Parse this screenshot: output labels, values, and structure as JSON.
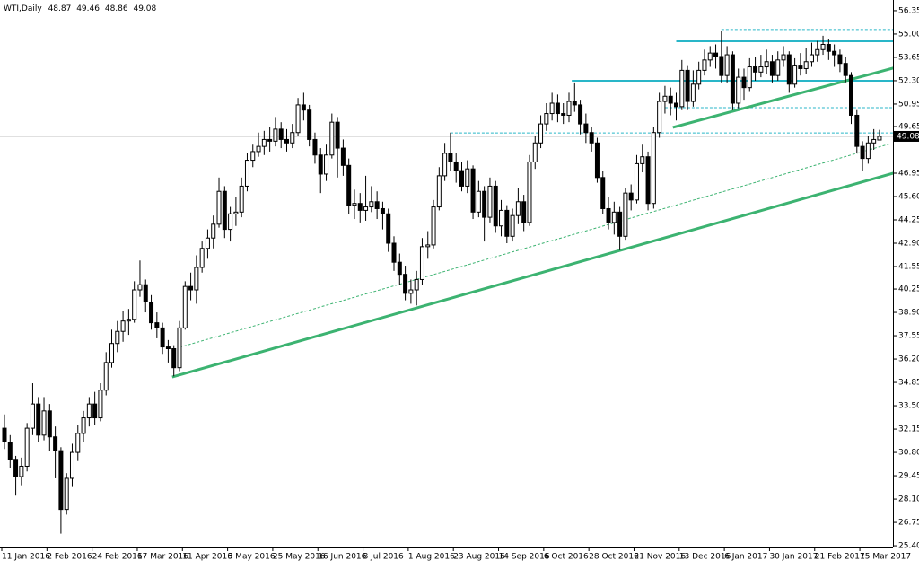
{
  "chart_data": {
    "type": "candlestick",
    "symbol": "WTI,Daily",
    "categories": [
      "11 Jan 2016",
      null,
      null,
      null,
      null,
      null,
      null,
      null,
      "2 Feb 2016",
      null,
      null,
      null,
      null,
      null,
      null,
      null,
      "24 Feb 2016",
      null,
      null,
      null,
      null,
      null,
      null,
      null,
      "17 Mar 2016",
      null,
      null,
      null,
      null,
      null,
      null,
      null,
      "11 Apr 2016",
      null,
      null,
      null,
      null,
      null,
      null,
      null,
      "3 May 2016",
      null,
      null,
      null,
      null,
      null,
      null,
      null,
      "25 May 2016",
      null,
      null,
      null,
      null,
      null,
      null,
      null,
      "16 Jun 2016",
      null,
      null,
      null,
      null,
      null,
      null,
      null,
      "8 Jul 2016",
      null,
      null,
      null,
      null,
      null,
      null,
      null,
      "1 Aug 2016",
      null,
      null,
      null,
      null,
      null,
      null,
      null,
      "23 Aug 2016",
      null,
      null,
      null,
      null,
      null,
      null,
      null,
      "14 Sep 2016",
      null,
      null,
      null,
      null,
      null,
      null,
      null,
      "6 Oct 2016",
      null,
      null,
      null,
      null,
      null,
      null,
      null,
      "28 Oct 2016",
      null,
      null,
      null,
      null,
      null,
      null,
      null,
      "21 Nov 2016",
      null,
      null,
      null,
      null,
      null,
      null,
      null,
      "13 Dec 2016",
      null,
      null,
      null,
      null,
      null,
      null,
      null,
      "6 Jan 2017",
      null,
      null,
      null,
      null,
      null,
      null,
      null,
      "30 Jan 2017",
      null,
      null,
      null,
      null,
      null,
      null,
      null,
      "21 Feb 2017",
      null,
      null,
      null,
      null,
      null,
      null,
      null,
      "15 Mar 2017",
      null,
      null,
      null
    ],
    "open": [
      32.2,
      31.4,
      30.4,
      29.4,
      30.0,
      32.2,
      33.6,
      31.8,
      33.2,
      31.7,
      30.9,
      27.5,
      29.3,
      30.8,
      31.9,
      32.8,
      33.6,
      32.8,
      34.4,
      36.0,
      37.1,
      37.8,
      38.4,
      38.5,
      40.2,
      40.5,
      39.5,
      38.3,
      38.0,
      36.9,
      36.8,
      35.7,
      38.0,
      40.4,
      40.2,
      41.5,
      42.6,
      43.2,
      44.0,
      45.9,
      43.7,
      44.6,
      44.7,
      46.2,
      47.7,
      48.2,
      48.5,
      48.9,
      48.8,
      49.5,
      48.9,
      48.7,
      49.3,
      50.9,
      50.6,
      48.9,
      48.0,
      46.9,
      48.0,
      49.9,
      48.4,
      47.4,
      45.1,
      45.2,
      44.8,
      45.0,
      45.3,
      44.9,
      44.6,
      42.9,
      41.8,
      41.1,
      40.0,
      40.2,
      40.8,
      42.7,
      42.8,
      45.0,
      46.8,
      48.1,
      47.6,
      47.1,
      46.2,
      47.2,
      44.7,
      45.9,
      44.4,
      46.2,
      43.9,
      44.8,
      43.3,
      44.5,
      45.3,
      44.1,
      47.6,
      48.7,
      49.8,
      50.4,
      51.0,
      50.4,
      50.3,
      51.1,
      50.9,
      49.8,
      49.3,
      48.7,
      46.7,
      44.9,
      44.1,
      44.7,
      43.3,
      45.8,
      45.4,
      47.5,
      47.9,
      45.2,
      49.3,
      51.1,
      51.4,
      51.0,
      50.8,
      52.9,
      51.1,
      52.1,
      52.9,
      53.5,
      53.9,
      53.7,
      52.6,
      53.8,
      51.0,
      52.5,
      51.9,
      53.1,
      52.8,
      53.1,
      53.4,
      52.6,
      53.5,
      53.8,
      52.1,
      53.2,
      53.0,
      53.4,
      53.8,
      54.1,
      54.4,
      54.0,
      53.8,
      53.3,
      52.6,
      50.3,
      48.5,
      47.8,
      48.7,
      48.87
    ],
    "high": [
      33.0,
      31.8,
      30.6,
      30.5,
      32.5,
      34.8,
      34.0,
      34.0,
      33.6,
      32.3,
      31.1,
      29.6,
      31.3,
      32.4,
      33.2,
      34.0,
      34.3,
      34.8,
      36.6,
      37.9,
      38.4,
      39.0,
      39.1,
      40.7,
      41.9,
      40.8,
      39.9,
      38.9,
      38.3,
      37.3,
      37.0,
      38.4,
      40.7,
      41.2,
      42.2,
      43.0,
      43.7,
      44.5,
      46.7,
      46.2,
      45.0,
      45.6,
      46.7,
      48.1,
      48.6,
      49.3,
      49.4,
      49.6,
      50.2,
      49.9,
      49.5,
      49.8,
      51.3,
      51.6,
      50.9,
      49.3,
      48.4,
      48.6,
      50.4,
      50.2,
      48.9,
      47.8,
      46.0,
      45.8,
      46.8,
      46.2,
      45.9,
      45.3,
      44.9,
      43.3,
      42.3,
      41.6,
      40.8,
      41.3,
      43.2,
      43.6,
      45.4,
      47.3,
      48.7,
      49.3,
      48.1,
      47.6,
      47.7,
      47.4,
      46.5,
      46.2,
      46.7,
      46.5,
      45.4,
      45.1,
      44.9,
      46.1,
      45.7,
      48.0,
      49.1,
      50.3,
      51.0,
      51.6,
      51.5,
      51.0,
      51.6,
      52.2,
      51.2,
      50.4,
      49.6,
      49.0,
      47.1,
      45.6,
      45.3,
      45.0,
      46.1,
      46.3,
      48.0,
      48.6,
      48.2,
      49.6,
      51.6,
      52.0,
      51.9,
      51.6,
      53.5,
      53.2,
      52.9,
      53.4,
      54.1,
      54.3,
      54.4,
      55.2,
      54.3,
      54.0,
      53.0,
      53.0,
      53.6,
      53.7,
      53.8,
      54.1,
      53.8,
      54.0,
      54.3,
      54.0,
      53.6,
      53.9,
      54.2,
      54.5,
      54.6,
      54.9,
      54.7,
      54.4,
      54.1,
      53.7,
      52.8,
      50.6,
      48.8,
      49.1,
      49.5,
      49.46
    ],
    "low": [
      31.0,
      29.9,
      28.3,
      28.9,
      29.7,
      31.8,
      31.4,
      31.5,
      30.9,
      29.3,
      26.1,
      27.2,
      28.8,
      30.3,
      31.4,
      32.3,
      32.4,
      32.6,
      34.1,
      35.7,
      36.6,
      37.2,
      37.6,
      38.3,
      39.8,
      38.9,
      37.9,
      37.4,
      36.5,
      36.0,
      35.2,
      35.5,
      37.9,
      39.6,
      39.4,
      41.2,
      42.0,
      42.6,
      43.8,
      43.2,
      43.0,
      43.9,
      44.4,
      45.9,
      47.3,
      47.9,
      48.0,
      48.2,
      48.5,
      48.4,
      48.2,
      48.4,
      49.1,
      50.0,
      48.5,
      47.5,
      45.8,
      46.5,
      47.8,
      46.7,
      46.8,
      44.6,
      44.3,
      44.1,
      44.2,
      44.7,
      44.3,
      43.7,
      42.4,
      41.3,
      40.5,
      39.6,
      39.4,
      39.3,
      40.5,
      42.0,
      42.6,
      44.8,
      46.5,
      47.1,
      46.4,
      45.9,
      45.8,
      44.3,
      44.4,
      43.0,
      44.1,
      43.5,
      43.3,
      42.9,
      43.0,
      44.0,
      43.6,
      43.9,
      47.2,
      48.4,
      49.4,
      50.0,
      49.9,
      49.8,
      49.9,
      50.5,
      49.2,
      48.7,
      48.2,
      46.4,
      44.6,
      43.7,
      43.4,
      42.5,
      43.1,
      44.8,
      45.2,
      47.0,
      44.8,
      44.9,
      49.0,
      50.4,
      50.3,
      50.0,
      50.6,
      50.6,
      50.8,
      51.8,
      52.6,
      53.1,
      53.0,
      52.2,
      52.2,
      50.6,
      50.7,
      51.2,
      51.7,
      52.3,
      52.5,
      52.7,
      52.2,
      52.3,
      53.1,
      51.6,
      51.9,
      52.6,
      52.7,
      53.1,
      53.4,
      53.8,
      53.5,
      53.1,
      52.8,
      52.2,
      49.8,
      48.1,
      47.1,
      47.5,
      48.3,
      48.86
    ],
    "close": [
      31.4,
      30.4,
      29.4,
      30.0,
      32.2,
      33.6,
      31.8,
      33.2,
      31.7,
      30.9,
      27.5,
      29.3,
      30.8,
      31.9,
      32.8,
      33.6,
      32.8,
      34.4,
      36.0,
      37.1,
      37.8,
      38.4,
      38.5,
      40.2,
      40.5,
      39.5,
      38.3,
      38.0,
      36.9,
      36.8,
      35.7,
      38.0,
      40.4,
      40.2,
      41.5,
      42.6,
      43.2,
      44.0,
      45.9,
      43.7,
      44.6,
      44.7,
      46.2,
      47.7,
      48.2,
      48.5,
      48.9,
      48.8,
      49.5,
      48.9,
      48.7,
      49.3,
      50.9,
      50.6,
      48.9,
      48.0,
      46.9,
      48.0,
      49.9,
      48.4,
      47.4,
      45.1,
      45.2,
      44.8,
      45.0,
      45.3,
      44.9,
      44.6,
      42.9,
      41.8,
      41.1,
      40.0,
      40.2,
      40.8,
      42.7,
      42.8,
      45.0,
      46.8,
      48.1,
      47.6,
      47.1,
      46.2,
      47.2,
      44.7,
      45.9,
      44.4,
      46.2,
      43.9,
      44.8,
      43.3,
      44.5,
      45.3,
      44.1,
      47.6,
      48.7,
      49.8,
      50.4,
      51.0,
      50.4,
      50.3,
      51.1,
      50.9,
      49.8,
      49.3,
      48.7,
      46.7,
      44.9,
      44.1,
      44.7,
      43.3,
      45.8,
      45.4,
      47.5,
      47.9,
      45.2,
      49.3,
      51.1,
      51.4,
      51.0,
      50.8,
      52.9,
      51.1,
      52.1,
      52.9,
      53.5,
      53.9,
      53.7,
      52.6,
      53.8,
      51.0,
      52.5,
      51.9,
      53.1,
      52.8,
      53.1,
      53.4,
      52.6,
      53.5,
      53.8,
      52.1,
      53.2,
      53.0,
      53.4,
      53.8,
      54.1,
      54.4,
      54.0,
      53.8,
      53.3,
      52.6,
      50.3,
      48.5,
      47.8,
      48.7,
      48.9,
      49.08
    ],
    "ylim": [
      25.3,
      56.97
    ],
    "yticks": [
      56.35,
      {
        "value": 55,
        "label": "55.00"
      },
      53.65,
      {
        "value": 52.3,
        "label": "52.30"
      },
      50.95,
      49.65,
      46.95,
      {
        "value": 45.6,
        "label": "45.60"
      },
      44.25,
      {
        "value": 42.9,
        "label": "42.90"
      },
      41.55,
      40.25,
      {
        "value": 38.9,
        "label": "38.90"
      },
      37.55,
      {
        "value": 36.2,
        "label": "36.20"
      },
      34.85,
      {
        "value": 33.5,
        "label": "33.50"
      },
      32.15,
      {
        "value": 30.8,
        "label": "30.80"
      },
      29.45,
      {
        "value": 28.1,
        "label": "28.10"
      },
      26.75,
      {
        "value": 25.4,
        "label": "25.40"
      }
    ],
    "bull_color": "#ffffff",
    "bear_color": "#000000",
    "price_line_color": "#c0c0c0",
    "levels": [
      {
        "price": 55.26,
        "from": 127,
        "to": 158,
        "color": "#29b6c8",
        "style": "dashed"
      },
      {
        "price": 54.58,
        "from": 119,
        "to": 158,
        "color": "#29b6c8",
        "style": "solid"
      },
      {
        "price": 52.3,
        "from": 100.5,
        "to": 158,
        "color": "#29b6c8",
        "style": "solid"
      },
      {
        "price": 50.74,
        "from": 117,
        "to": 158,
        "color": "#29b6c8",
        "style": "dashed"
      },
      {
        "price": 49.28,
        "from": 79,
        "to": 158,
        "color": "#29b6c8",
        "style": "dashed"
      }
    ],
    "trendlines": [
      {
        "from": [
          29.7,
          35.16
        ],
        "to": [
          158,
          47.0
        ],
        "color": "#3cb371",
        "style": "thick"
      },
      {
        "from": [
          31,
          36.88
        ],
        "to": [
          157,
          48.66
        ],
        "color": "#3cb371",
        "style": "dashed"
      },
      {
        "from": [
          118.4,
          49.6
        ],
        "to": [
          158,
          53.08
        ],
        "color": "#3cb371",
        "style": "thick"
      }
    ]
  }
}
